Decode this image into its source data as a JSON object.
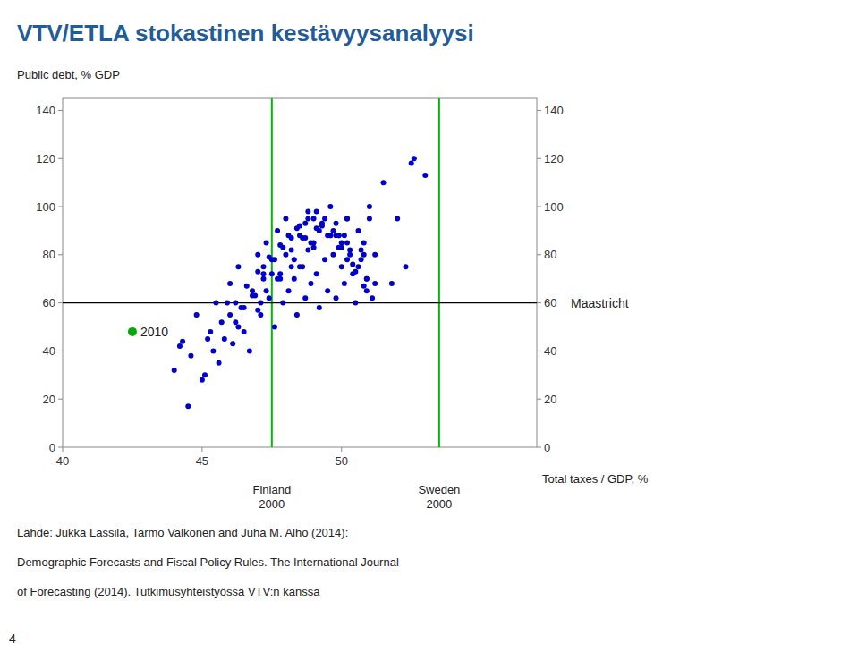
{
  "chart_data": {
    "type": "scatter",
    "title": "VTV/ETLA stokastinen kestävyysanalyysi",
    "title_color": "#1F5C99",
    "y_label": "Public debt, % GDP",
    "x_label": "Total taxes / GDP, %",
    "xlim": [
      40,
      57
    ],
    "ylim": [
      0,
      145
    ],
    "xticks": [
      40,
      45,
      50
    ],
    "yticks": [
      0,
      20,
      40,
      60,
      80,
      100,
      120,
      140
    ],
    "y2lim": [
      0,
      145
    ],
    "y2ticks": [
      0,
      20,
      40,
      60,
      80,
      100,
      120,
      140
    ],
    "grid": false,
    "series": [
      {
        "color": "#0000CC",
        "x": [
          44.2,
          44.8,
          45.1,
          45.3,
          45.5,
          45.8,
          46.0,
          46.2,
          46.3,
          46.5,
          46.7,
          46.8,
          47.0,
          47.1,
          47.2,
          47.3,
          47.4,
          47.5,
          47.6,
          47.7,
          47.8,
          47.9,
          48.0,
          48.1,
          48.2,
          48.3,
          48.4,
          48.5,
          48.6,
          48.7,
          48.8,
          48.9,
          49.0,
          49.1,
          49.2,
          49.3,
          49.4,
          49.5,
          49.6,
          49.7,
          49.8,
          49.9,
          50.0,
          50.1,
          50.2,
          50.3,
          50.4,
          50.5,
          50.6,
          50.7,
          50.8,
          50.9,
          51.0,
          51.2,
          51.5,
          51.8,
          52.0,
          52.3,
          52.6,
          53.0,
          44.5,
          45.0,
          45.6,
          46.1,
          46.4,
          46.9,
          47.2,
          47.6,
          47.9,
          48.2,
          48.5,
          48.8,
          49.1,
          49.4,
          49.7,
          50.0,
          50.3,
          50.6,
          50.9,
          51.2,
          44.0,
          44.6,
          45.2,
          45.7,
          46.2,
          46.6,
          47.0,
          47.4,
          47.8,
          48.1,
          48.4,
          48.7,
          49.0,
          49.3,
          49.6,
          49.9,
          50.2,
          50.5,
          50.8,
          51.1,
          45.4,
          46.3,
          47.1,
          47.8,
          48.3,
          48.9,
          49.2,
          49.8,
          50.1,
          50.7,
          46.0,
          46.8,
          47.5,
          48.0,
          48.6,
          49.1,
          49.5,
          50.0,
          50.4,
          50.9,
          47.3,
          48.2,
          49.0,
          49.6,
          50.2,
          50.8,
          46.5,
          47.7,
          48.8,
          49.9,
          47.0,
          48.5,
          49.8,
          51.0,
          52.5,
          44.3,
          45.9,
          47.2,
          48.7,
          50.2
        ],
        "values": [
          42.0,
          55.0,
          30.0,
          48.0,
          60.0,
          45.0,
          68.0,
          52.0,
          75.0,
          58.0,
          40.0,
          65.0,
          80.0,
          55.0,
          70.0,
          85.0,
          62.0,
          78.0,
          50.0,
          90.0,
          72.0,
          60.0,
          95.0,
          65.0,
          82.0,
          70.0,
          55.0,
          88.0,
          75.0,
          62.0,
          98.0,
          68.0,
          85.0,
          72.0,
          58.0,
          92.0,
          78.0,
          65.0,
          100.0,
          80.0,
          62.0,
          88.0,
          75.0,
          68.0,
          95.0,
          82.0,
          72.0,
          60.0,
          90.0,
          78.0,
          85.0,
          65.0,
          100.0,
          80.0,
          110.0,
          68.0,
          95.0,
          75.0,
          120.0,
          113.0,
          17.0,
          28.0,
          35.0,
          43.0,
          58.0,
          63.0,
          72.0,
          78.0,
          83.0,
          87.0,
          92.0,
          95.0,
          98.0,
          95.0,
          90.0,
          85.0,
          80.0,
          75.0,
          70.0,
          68.0,
          32.0,
          38.0,
          45.0,
          52.0,
          60.0,
          67.0,
          73.0,
          79.0,
          84.0,
          88.0,
          91.0,
          93.0,
          95.0,
          93.0,
          88.0,
          83.0,
          78.0,
          73.0,
          67.0,
          62.0,
          40.0,
          50.0,
          60.0,
          70.0,
          78.0,
          85.0,
          90.0,
          93.0,
          88.0,
          82.0,
          55.0,
          63.0,
          72.0,
          80.0,
          87.0,
          91.0,
          88.0,
          83.0,
          76.0,
          70.0,
          65.0,
          75.0,
          83.0,
          88.0,
          85.0,
          80.0,
          48.0,
          70.0,
          82.0,
          88.0,
          57.0,
          75.0,
          88.0,
          95.0,
          118.0,
          44.0,
          60.0,
          75.0,
          87.0,
          95.0
        ]
      },
      {
        "color": "#00AA00",
        "x": [
          42.5
        ],
        "values": [
          48
        ],
        "labels": [
          "2010"
        ]
      }
    ],
    "reference_lines": [
      {
        "axis": "x",
        "value": 47.5,
        "label": "Finland\n2000",
        "color": "#00BB00"
      },
      {
        "axis": "x",
        "value": 53.5,
        "label": "Sweden\n2000",
        "color": "#00BB00"
      },
      {
        "axis": "y",
        "value": 60,
        "label": "Maastricht",
        "color": "#000000"
      }
    ],
    "footnotes": [
      "Lähde: Jukka Lassila, Tarmo Valkonen and Juha M. Alho (2014):",
      "Demographic Forecasts and Fiscal Policy Rules. The International Journal",
      "of Forecasting (2014). Tutkimusyhteistyössä VTV:n kanssa"
    ],
    "page_number": "4"
  }
}
